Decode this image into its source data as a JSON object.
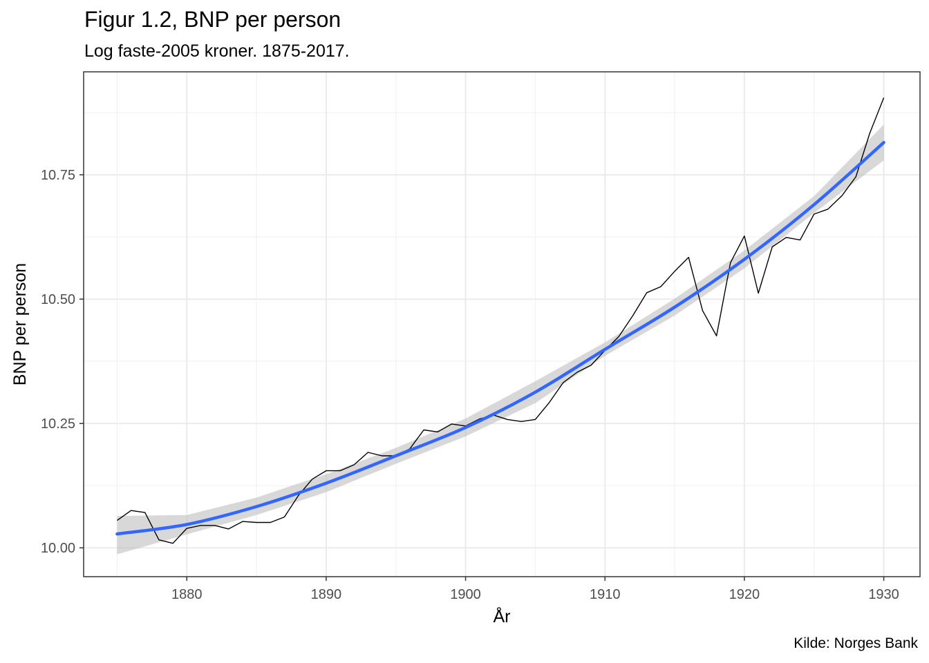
{
  "chart_data": {
    "type": "line",
    "title": "Figur 1.2, BNP per person",
    "subtitle": "Log faste-2005 kroner. 1875-2017.",
    "xlabel": "År",
    "ylabel": "BNP per person",
    "caption": "Kilde: Norges Bank",
    "xlim": [
      1872.6,
      1932.6
    ],
    "ylim": [
      9.942,
      10.957
    ],
    "x_ticks": [
      1880,
      1890,
      1900,
      1910,
      1920,
      1930
    ],
    "x_minor_ticks": [
      1875,
      1885,
      1895,
      1905,
      1915,
      1925
    ],
    "y_ticks": [
      10.0,
      10.25,
      10.5,
      10.75
    ],
    "y_tick_labels": [
      "10.00",
      "10.25",
      "10.50",
      "10.75"
    ],
    "y_minor_ticks": [
      10.125,
      10.375,
      10.625,
      10.875
    ],
    "grid": true,
    "legend": "none",
    "series": [
      {
        "kind": "observed",
        "color": "#000000",
        "x": [
          1875,
          1876,
          1877,
          1878,
          1879,
          1880,
          1881,
          1882,
          1883,
          1884,
          1885,
          1886,
          1887,
          1888,
          1889,
          1890,
          1891,
          1892,
          1893,
          1894,
          1895,
          1896,
          1897,
          1898,
          1899,
          1900,
          1901,
          1902,
          1903,
          1904,
          1905,
          1906,
          1907,
          1908,
          1909,
          1910,
          1911,
          1912,
          1913,
          1914,
          1915,
          1916,
          1917,
          1918,
          1919,
          1920,
          1921,
          1922,
          1923,
          1924,
          1925,
          1926,
          1927,
          1928,
          1929,
          1930
        ],
        "y": [
          10.055,
          10.075,
          10.071,
          10.016,
          10.009,
          10.039,
          10.045,
          10.045,
          10.038,
          10.053,
          10.051,
          10.051,
          10.062,
          10.105,
          10.138,
          10.155,
          10.155,
          10.167,
          10.192,
          10.185,
          10.185,
          10.199,
          10.237,
          10.233,
          10.249,
          10.245,
          10.259,
          10.267,
          10.258,
          10.254,
          10.258,
          10.292,
          10.332,
          10.353,
          10.367,
          10.397,
          10.425,
          10.467,
          10.513,
          10.525,
          10.556,
          10.584,
          10.477,
          10.426,
          10.573,
          10.627,
          10.512,
          10.605,
          10.624,
          10.619,
          10.671,
          10.681,
          10.708,
          10.746,
          10.834,
          10.905
        ]
      },
      {
        "kind": "smooth",
        "color": "#3366ff",
        "x": [
          1875,
          1880,
          1885,
          1890,
          1895,
          1900,
          1905,
          1910,
          1915,
          1920,
          1925,
          1930
        ],
        "y": [
          10.028,
          10.047,
          10.083,
          10.13,
          10.185,
          10.242,
          10.313,
          10.399,
          10.484,
          10.58,
          10.69,
          10.815
        ],
        "band_color": "#bebebe",
        "band_lower": [
          9.987,
          10.027,
          10.066,
          10.112,
          10.169,
          10.224,
          10.291,
          10.386,
          10.467,
          10.562,
          10.673,
          10.779
        ],
        "band_upper": [
          10.064,
          10.066,
          10.101,
          10.148,
          10.201,
          10.26,
          10.335,
          10.413,
          10.501,
          10.598,
          10.707,
          10.851
        ]
      }
    ]
  }
}
